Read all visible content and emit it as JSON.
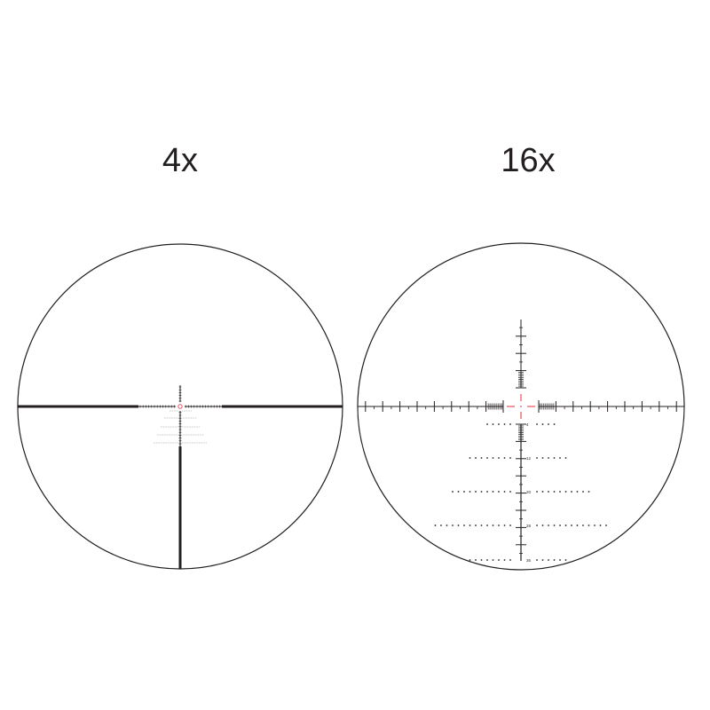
{
  "panels": [
    {
      "title": "4x"
    },
    {
      "title": "16x",
      "holdover_labels": [
        "4",
        "12",
        "20",
        "28",
        "36"
      ]
    }
  ],
  "colors": {
    "reticle": "#231f20",
    "center_dot": "#e8505b",
    "background": "#ffffff"
  }
}
